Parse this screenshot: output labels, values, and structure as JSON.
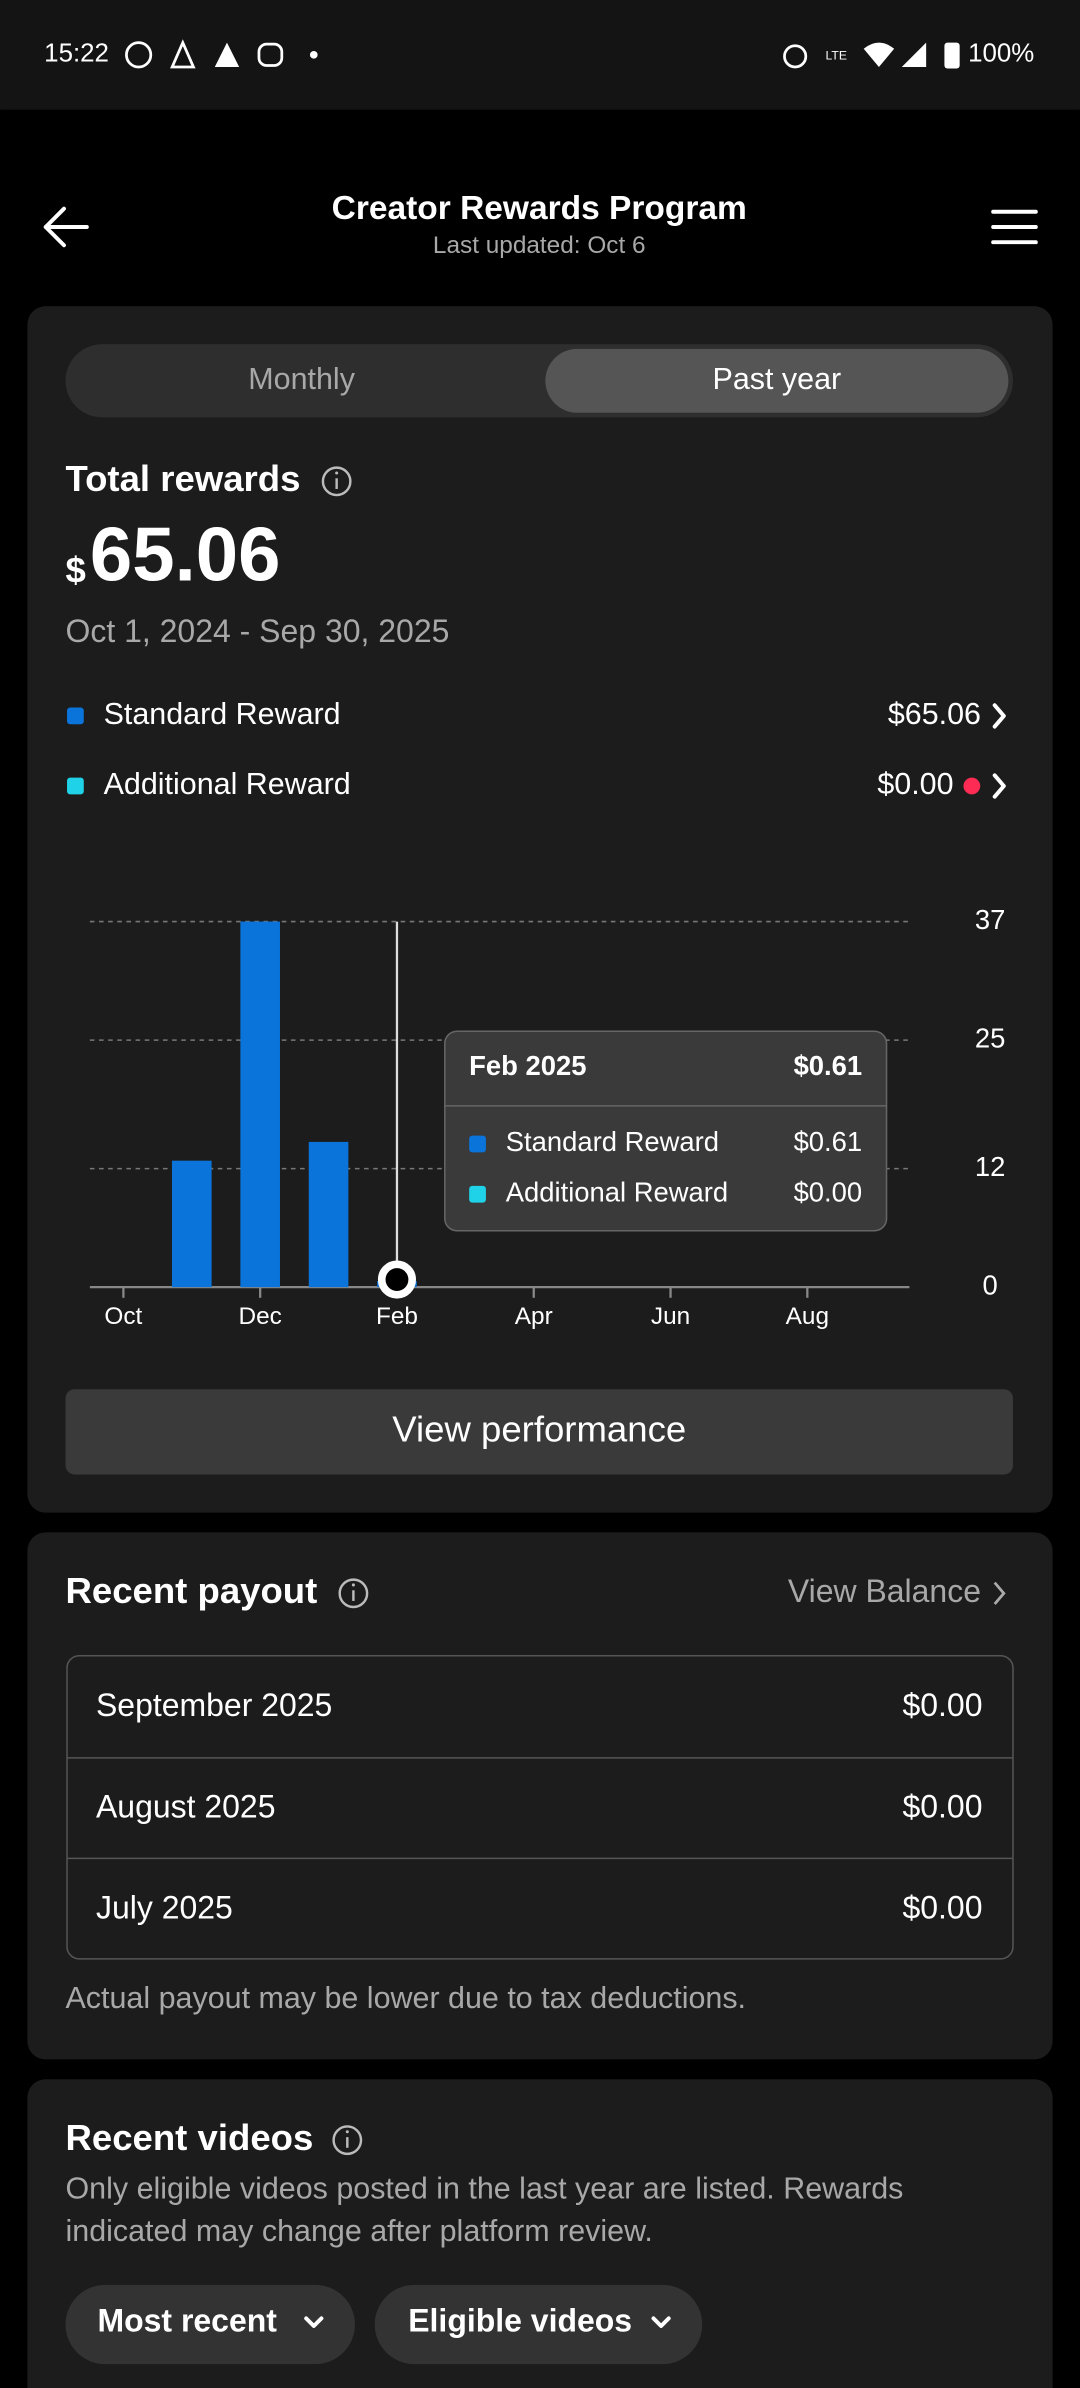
{
  "status_bar": {
    "time": "15:22",
    "battery": "100%"
  },
  "header": {
    "title": "Creator Rewards Program",
    "subtitle": "Last updated: Oct 6"
  },
  "tabs": [
    "Monthly",
    "Past year"
  ],
  "total": {
    "label": "Total rewards",
    "currency": "$",
    "amount": "65.06",
    "period": "Oct 1, 2024 - Sep 30, 2025"
  },
  "breakdown_values": [
    "$65.06",
    "$0.00"
  ],
  "chart_data": {
    "type": "bar",
    "categories": [
      "Oct",
      null,
      "Dec",
      null,
      "Feb",
      null,
      "Apr",
      null,
      "Jun",
      null,
      "Aug",
      null
    ],
    "series": [
      {
        "name": "Standard Reward",
        "color": "#0a74da",
        "values": [
          0,
          12.8,
          37,
          14.7,
          0.61,
          0,
          0,
          0,
          0,
          0,
          0,
          0
        ]
      },
      {
        "name": "Additional Reward",
        "color": "#1fd2e8",
        "values": [
          0,
          0,
          0,
          0,
          0,
          0,
          0,
          0,
          0,
          0,
          0,
          0
        ]
      }
    ],
    "ylim": [
      0,
      37
    ],
    "yticks": [
      0,
      12,
      25,
      37
    ],
    "grid": true
  },
  "tooltip": {
    "title": "Feb 2025",
    "total": "$0.61",
    "values": [
      "$0.61",
      "$0.00"
    ]
  },
  "view_performance": "View performance",
  "recent_payout": {
    "title": "Recent payout",
    "link": "View Balance",
    "rows": [
      [
        "September 2025",
        "$0.00"
      ],
      [
        "August 2025",
        "$0.00"
      ],
      [
        "July 2025",
        "$0.00"
      ]
    ],
    "note": "Actual payout may be lower due to tax deductions."
  },
  "recent_videos": {
    "title": "Recent videos",
    "description": [
      "Only eligible videos posted in the last year are listed. Rewards",
      "indicated may change after platform review."
    ],
    "filters": [
      "Most recent",
      "Eligible videos"
    ]
  }
}
